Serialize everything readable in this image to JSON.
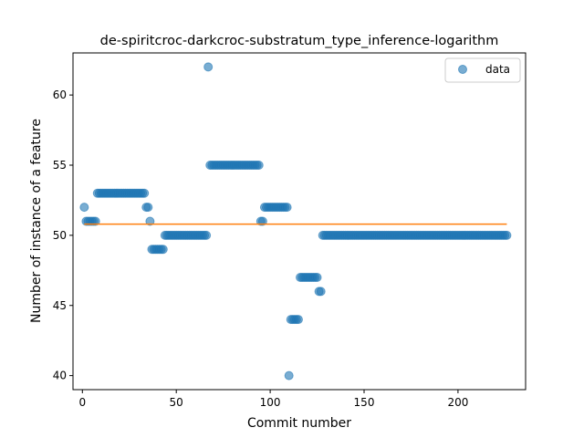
{
  "chart_data": {
    "type": "scatter",
    "title": "de-spiritcroc-darkcroc-substratum_type_inference-logarithm",
    "xlabel": "Commit number",
    "ylabel": "Number of instance of a feature",
    "xlim": [
      -5,
      236
    ],
    "ylim": [
      39,
      63
    ],
    "xticks": [
      0,
      50,
      100,
      150,
      200
    ],
    "yticks": [
      40,
      45,
      50,
      55,
      60
    ],
    "legend": {
      "position": "top-right",
      "entries": [
        "data"
      ]
    },
    "grid": false,
    "colors": {
      "data": "#1f77b4",
      "fit": "#ff7f0e"
    },
    "series": [
      {
        "name": "data",
        "kind": "scatter",
        "segments": [
          {
            "x_start": 1,
            "x_end": 1,
            "y": 52
          },
          {
            "x_start": 2,
            "x_end": 7,
            "y": 51
          },
          {
            "x_start": 8,
            "x_end": 33,
            "y": 53
          },
          {
            "x_start": 34,
            "x_end": 35,
            "y": 52
          },
          {
            "x_start": 36,
            "x_end": 36,
            "y": 51
          },
          {
            "x_start": 37,
            "x_end": 43,
            "y": 49
          },
          {
            "x_start": 44,
            "x_end": 66,
            "y": 50
          },
          {
            "x_start": 67,
            "x_end": 67,
            "y": 62
          },
          {
            "x_start": 68,
            "x_end": 94,
            "y": 55
          },
          {
            "x_start": 95,
            "x_end": 96,
            "y": 51
          },
          {
            "x_start": 97,
            "x_end": 109,
            "y": 52
          },
          {
            "x_start": 110,
            "x_end": 110,
            "y": 40
          },
          {
            "x_start": 111,
            "x_end": 115,
            "y": 44
          },
          {
            "x_start": 116,
            "x_end": 125,
            "y": 47
          },
          {
            "x_start": 126,
            "x_end": 127,
            "y": 46
          },
          {
            "x_start": 128,
            "x_end": 226,
            "y": 50
          }
        ]
      },
      {
        "name": "",
        "kind": "line",
        "x": [
          1,
          226
        ],
        "y": [
          50.8,
          50.8
        ]
      }
    ]
  }
}
